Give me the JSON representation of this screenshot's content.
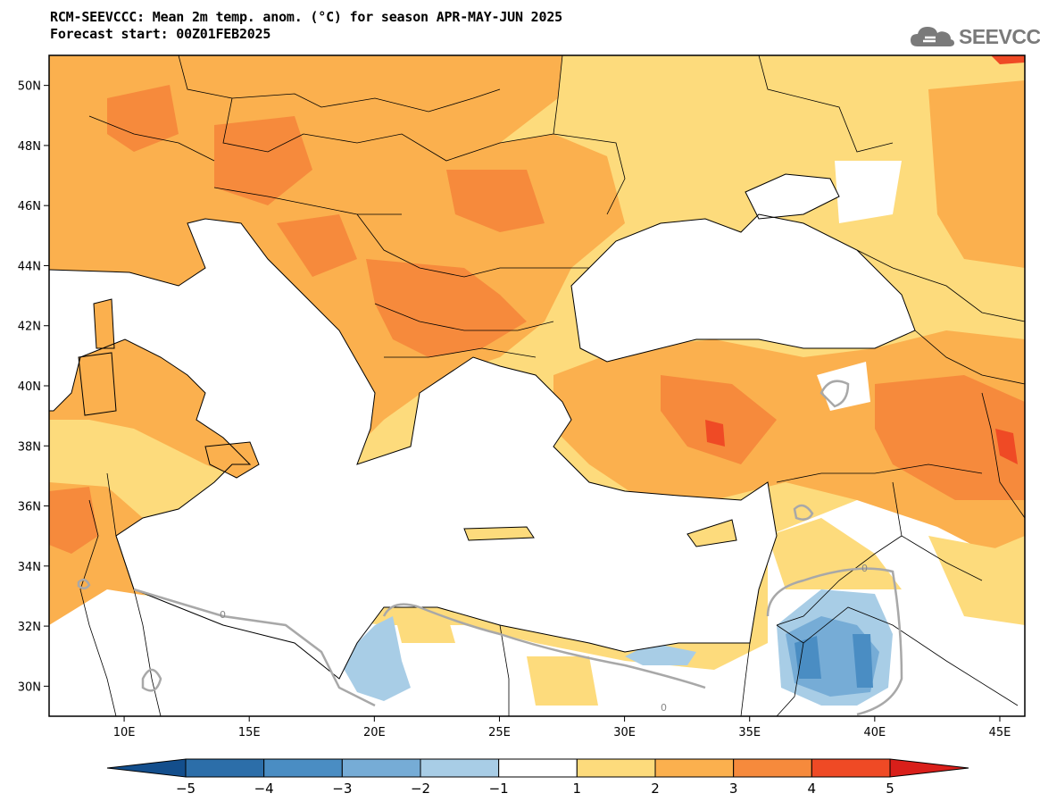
{
  "header": {
    "title_line1": "RCM-SEEVCCC: Mean 2m temp. anom. (°C) for season APR-MAY-JUN 2025",
    "title_line2": "Forecast start: 00Z01FEB2025"
  },
  "logo": {
    "text": "SEEVCCC",
    "icon": "cloud-icon"
  },
  "map": {
    "lon_range": [
      7,
      46
    ],
    "lat_range": [
      29,
      51
    ],
    "lat_ticks": [
      "50N",
      "48N",
      "46N",
      "44N",
      "42N",
      "40N",
      "38N",
      "36N",
      "34N",
      "32N",
      "30N"
    ],
    "lon_ticks": [
      "10E",
      "15E",
      "20E",
      "25E",
      "30E",
      "35E",
      "40E",
      "45E"
    ],
    "contour_labels": [
      "0",
      "0",
      "0"
    ]
  },
  "colorbar": {
    "tick_labels": [
      "−5",
      "−4",
      "−3",
      "−2",
      "−1",
      "1",
      "2",
      "3",
      "4",
      "5"
    ],
    "colors": [
      "#134e8c",
      "#2c6ea9",
      "#4a8dc3",
      "#76acd6",
      "#a8cde6",
      "#ffffff",
      "#fddb7c",
      "#fbb04e",
      "#f68a3c",
      "#ef4a25",
      "#d91f1a"
    ]
  }
}
